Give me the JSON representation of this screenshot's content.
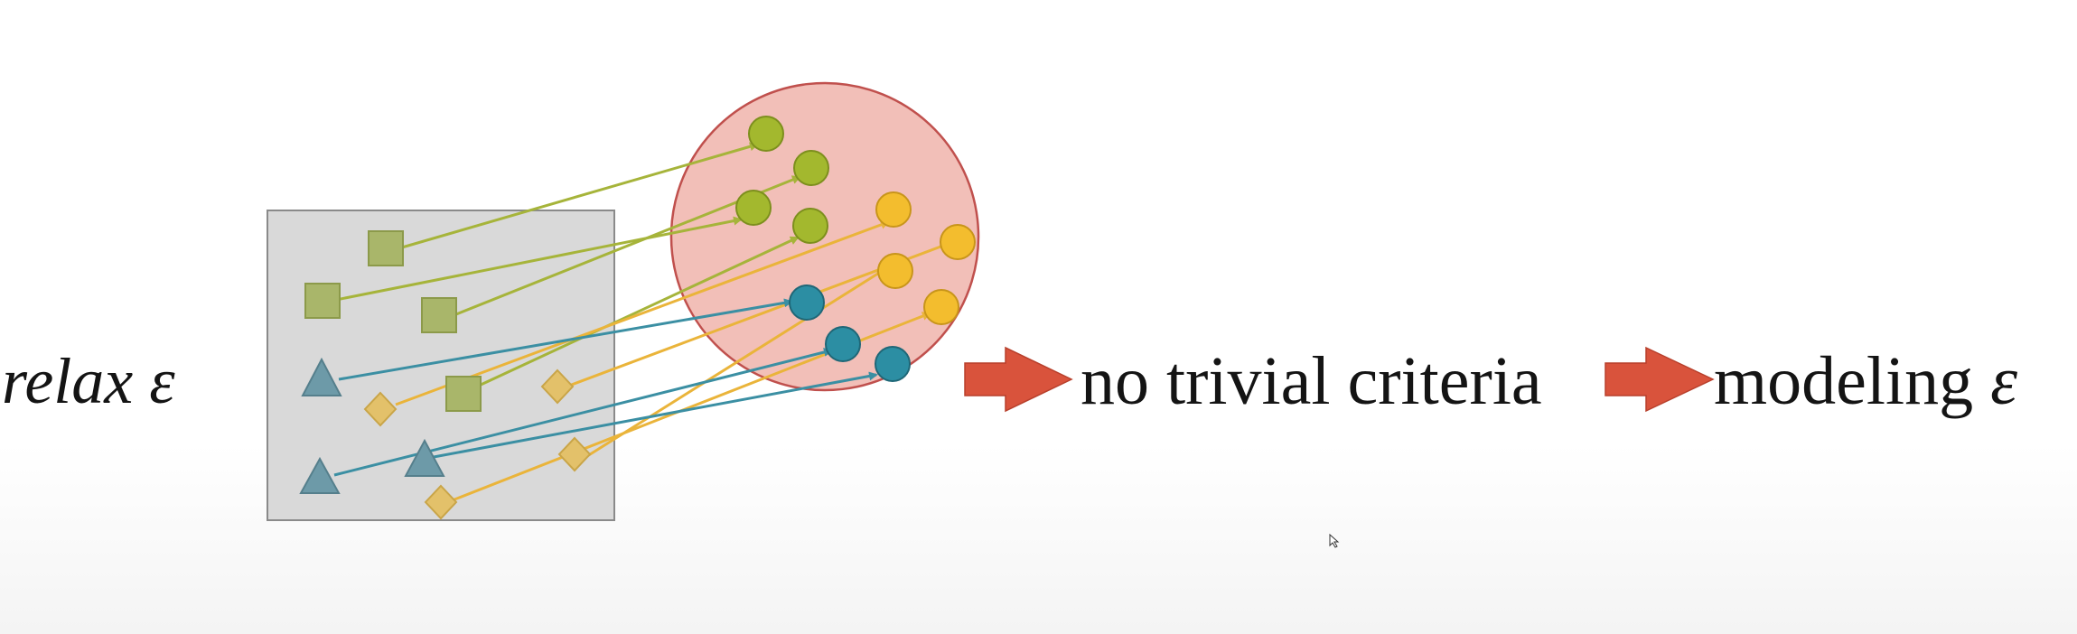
{
  "left_label": {
    "text": "relax ",
    "symbol": "ε"
  },
  "middle_label": {
    "text": "no trivial criteria"
  },
  "right_label": {
    "text": "modeling ",
    "symbol": "ε"
  },
  "colors": {
    "square_fill": "#a9b66a",
    "square_stroke": "#8c9a4a",
    "triangle_fill": "#6d9aa8",
    "diamond_fill": "#e3c16a",
    "green_dot": "#a3b82e",
    "yellow_dot": "#f3bd2e",
    "teal_dot": "#2c8ea3",
    "ellipse_fill": "#f2bfb8",
    "ellipse_stroke": "#c0504d",
    "box_fill": "#d9d9d9",
    "box_stroke": "#8a8a8a",
    "green_arrow": "#a6b43a",
    "yellow_arrow": "#eab43a",
    "teal_arrow": "#3b8fa3",
    "block_arrow": "#d9533c"
  }
}
